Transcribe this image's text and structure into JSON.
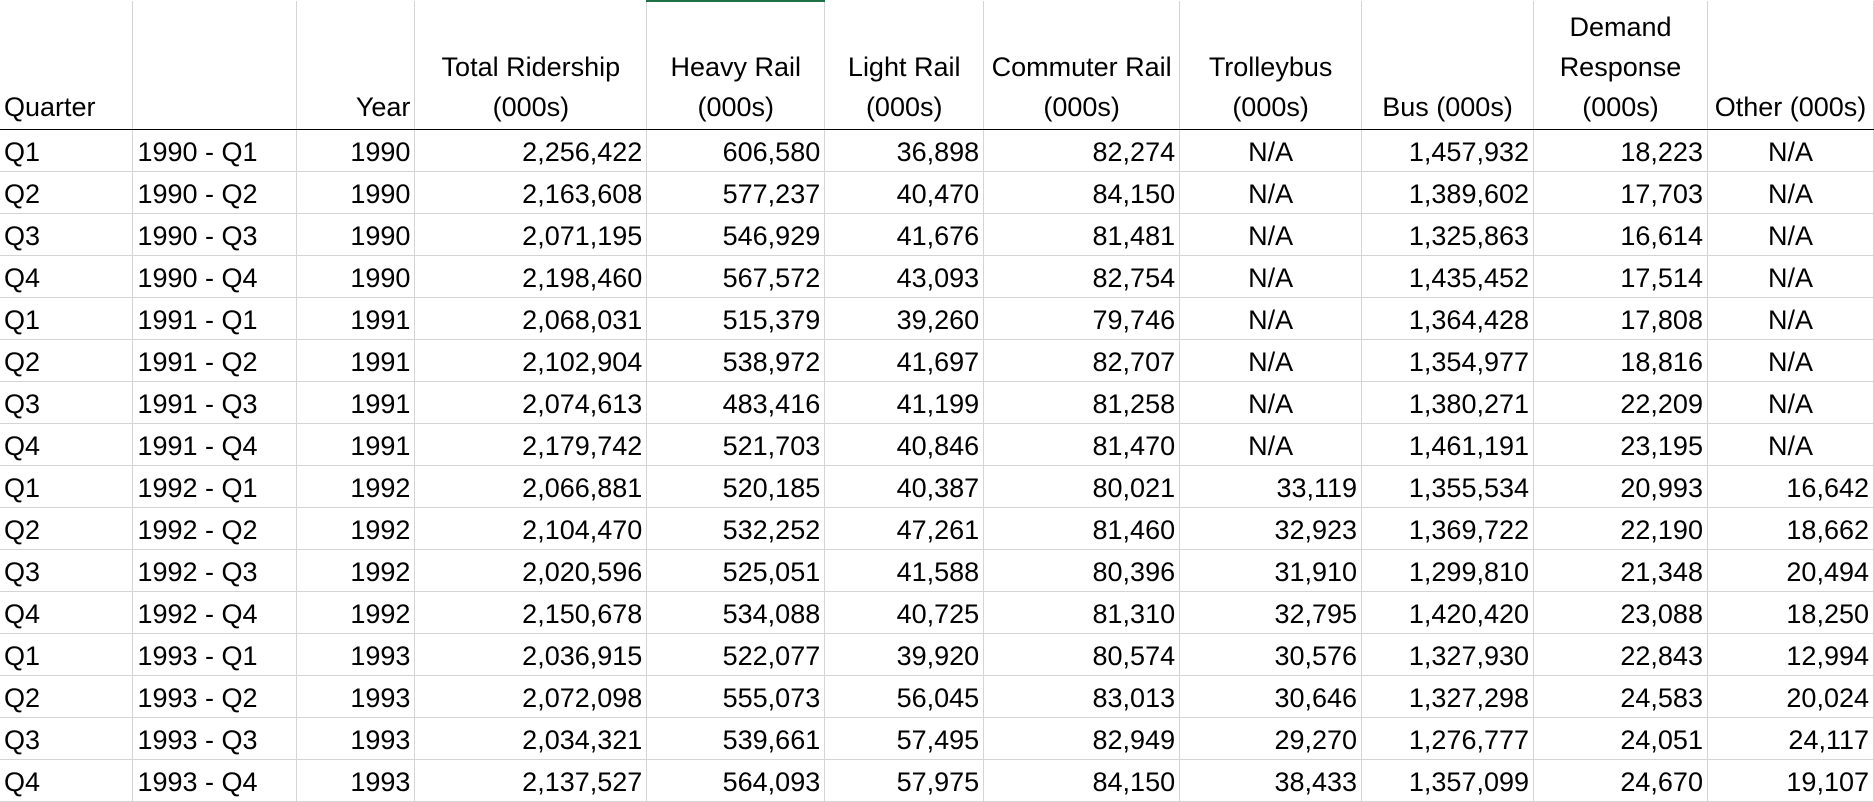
{
  "columns": [
    {
      "label": "Quarter"
    },
    {
      "label": ""
    },
    {
      "label": "Year"
    },
    {
      "label": "Total Ridership (000s)"
    },
    {
      "label": "Heavy Rail (000s)"
    },
    {
      "label": "Light Rail (000s)"
    },
    {
      "label": "Commuter Rail (000s)"
    },
    {
      "label": "Trolleybus (000s)"
    },
    {
      "label": "Bus (000s)"
    },
    {
      "label": "Demand Response (000s)"
    },
    {
      "label": "Other (000s)"
    }
  ],
  "rows": [
    {
      "cells": [
        "Q1",
        "1990 - Q1",
        "1990",
        "2,256,422",
        "606,580",
        "36,898",
        "82,274",
        "N/A",
        "1,457,932",
        "18,223",
        "N/A"
      ]
    },
    {
      "cells": [
        "Q2",
        "1990 - Q2",
        "1990",
        "2,163,608",
        "577,237",
        "40,470",
        "84,150",
        "N/A",
        "1,389,602",
        "17,703",
        "N/A"
      ]
    },
    {
      "cells": [
        "Q3",
        "1990 - Q3",
        "1990",
        "2,071,195",
        "546,929",
        "41,676",
        "81,481",
        "N/A",
        "1,325,863",
        "16,614",
        "N/A"
      ]
    },
    {
      "cells": [
        "Q4",
        "1990 - Q4",
        "1990",
        "2,198,460",
        "567,572",
        "43,093",
        "82,754",
        "N/A",
        "1,435,452",
        "17,514",
        "N/A"
      ]
    },
    {
      "cells": [
        "Q1",
        "1991 - Q1",
        "1991",
        "2,068,031",
        "515,379",
        "39,260",
        "79,746",
        "N/A",
        "1,364,428",
        "17,808",
        "N/A"
      ]
    },
    {
      "cells": [
        "Q2",
        "1991 - Q2",
        "1991",
        "2,102,904",
        "538,972",
        "41,697",
        "82,707",
        "N/A",
        "1,354,977",
        "18,816",
        "N/A"
      ]
    },
    {
      "cells": [
        "Q3",
        "1991 - Q3",
        "1991",
        "2,074,613",
        "483,416",
        "41,199",
        "81,258",
        "N/A",
        "1,380,271",
        "22,209",
        "N/A"
      ]
    },
    {
      "cells": [
        "Q4",
        "1991 - Q4",
        "1991",
        "2,179,742",
        "521,703",
        "40,846",
        "81,470",
        "N/A",
        "1,461,191",
        "23,195",
        "N/A"
      ]
    },
    {
      "cells": [
        "Q1",
        "1992 - Q1",
        "1992",
        "2,066,881",
        "520,185",
        "40,387",
        "80,021",
        "33,119",
        "1,355,534",
        "20,993",
        "16,642"
      ]
    },
    {
      "cells": [
        "Q2",
        "1992 - Q2",
        "1992",
        "2,104,470",
        "532,252",
        "47,261",
        "81,460",
        "32,923",
        "1,369,722",
        "22,190",
        "18,662"
      ]
    },
    {
      "cells": [
        "Q3",
        "1992 - Q3",
        "1992",
        "2,020,596",
        "525,051",
        "41,588",
        "80,396",
        "31,910",
        "1,299,810",
        "21,348",
        "20,494"
      ]
    },
    {
      "cells": [
        "Q4",
        "1992 - Q4",
        "1992",
        "2,150,678",
        "534,088",
        "40,725",
        "81,310",
        "32,795",
        "1,420,420",
        "23,088",
        "18,250"
      ]
    },
    {
      "cells": [
        "Q1",
        "1993 - Q1",
        "1993",
        "2,036,915",
        "522,077",
        "39,920",
        "80,574",
        "30,576",
        "1,327,930",
        "22,843",
        "12,994"
      ]
    },
    {
      "cells": [
        "Q2",
        "1993 - Q2",
        "1993",
        "2,072,098",
        "555,073",
        "56,045",
        "83,013",
        "30,646",
        "1,327,298",
        "24,583",
        "20,024"
      ]
    },
    {
      "cells": [
        "Q3",
        "1993 - Q3",
        "1993",
        "2,034,321",
        "539,661",
        "57,495",
        "82,949",
        "29,270",
        "1,276,777",
        "24,051",
        "24,117"
      ]
    },
    {
      "cells": [
        "Q4",
        "1993 - Q4",
        "1993",
        "2,137,527",
        "564,093",
        "57,975",
        "84,150",
        "38,433",
        "1,357,099",
        "24,670",
        "19,107"
      ]
    }
  ],
  "colors": {
    "gridline": "#d4d4d4",
    "header_bottom_border": "#000000",
    "active_column_marker": "#1e7145"
  }
}
